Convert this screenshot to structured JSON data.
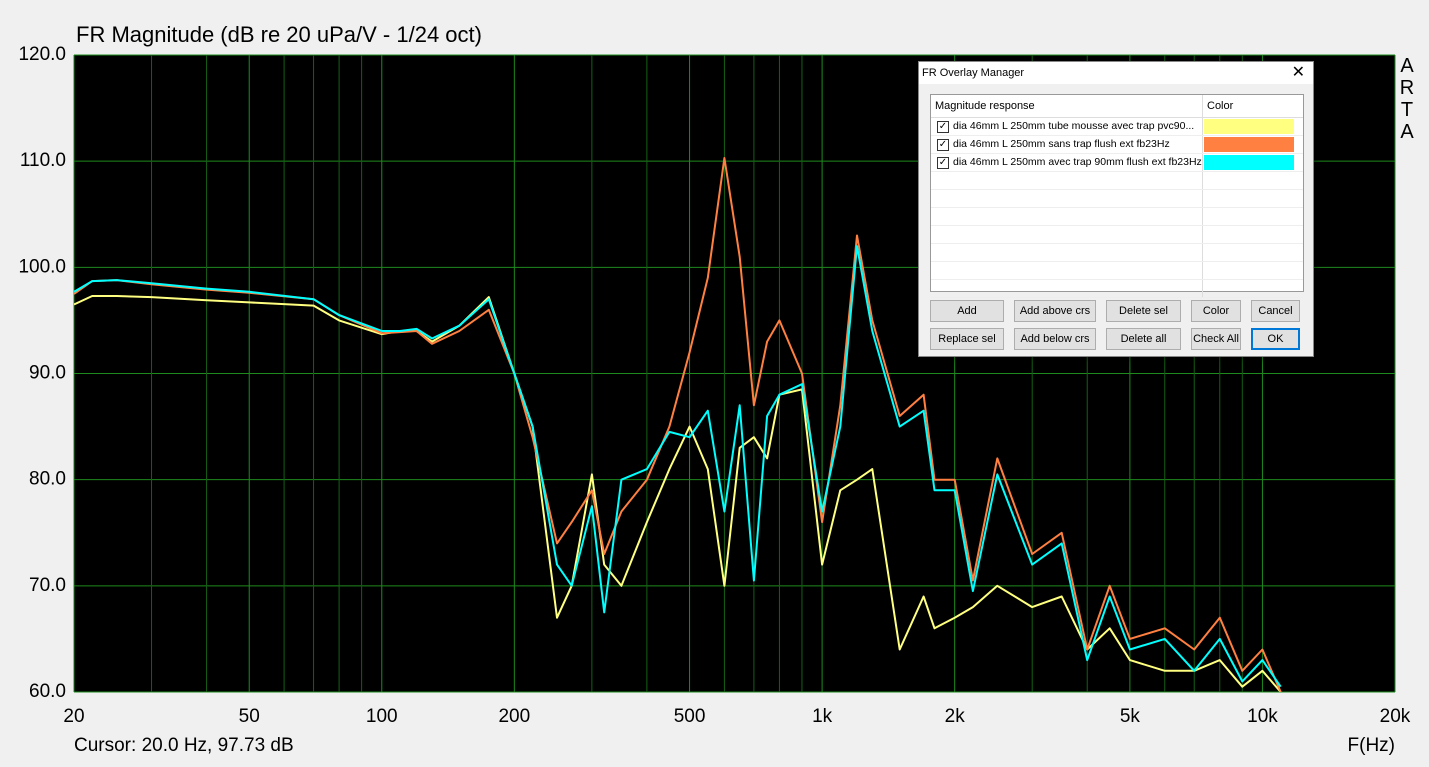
{
  "chart_data": {
    "type": "line",
    "title": "FR Magnitude (dB re 20 uPa/V - 1/24 oct)",
    "x_label": "F(Hz)",
    "side_label": "ARTA",
    "cursor": "Cursor: 20.0 Hz, 97.73 dB",
    "log_x": true,
    "grid": true,
    "xlim": [
      20,
      20000
    ],
    "ylim": [
      60,
      120
    ],
    "xticks": [
      20,
      50,
      100,
      200,
      500,
      {
        "value": 1000,
        "label": "1k"
      },
      {
        "value": 2000,
        "label": "2k"
      },
      {
        "value": 5000,
        "label": "5k"
      },
      {
        "value": 10000,
        "label": "10k"
      },
      {
        "value": 20000,
        "label": "20k"
      }
    ],
    "x_minor_grid": [
      30,
      40,
      60,
      70,
      80,
      90,
      300,
      400,
      600,
      700,
      800,
      900,
      3000,
      4000,
      6000,
      7000,
      8000,
      9000
    ],
    "yticks": [
      {
        "value": 60,
        "label": "60.0"
      },
      {
        "value": 70,
        "label": "70.0"
      },
      {
        "value": 80,
        "label": "80.0"
      },
      {
        "value": 90,
        "label": "90.0"
      },
      {
        "value": 100,
        "label": "100.0"
      },
      {
        "value": 110,
        "label": "110.0"
      },
      {
        "value": 120,
        "label": "120.0"
      }
    ],
    "x": [
      20,
      22,
      25,
      30,
      40,
      50,
      70,
      80,
      100,
      110,
      120,
      130,
      150,
      175,
      200,
      220,
      250,
      270,
      300,
      320,
      350,
      400,
      450,
      500,
      550,
      600,
      650,
      700,
      750,
      800,
      900,
      1000,
      1100,
      1200,
      1300,
      1500,
      1700,
      1800,
      2000,
      2200,
      2500,
      3000,
      3500,
      4000,
      4500,
      5000,
      6000,
      7000,
      8000,
      9000,
      10000,
      11000
    ],
    "series": [
      {
        "name": "dia 46mm L 250mm tube mousse avec trap pvc90...",
        "color": "#ffff80",
        "values": [
          96.5,
          97.3,
          97.3,
          97.2,
          96.9,
          96.7,
          96.4,
          95,
          93.7,
          94,
          94,
          93,
          94.5,
          97.2,
          90,
          85,
          67,
          70,
          80.5,
          72,
          70,
          76,
          81,
          85,
          81,
          70,
          83,
          84,
          82,
          88,
          88.5,
          72,
          79,
          80,
          81,
          64,
          69,
          66,
          67,
          68,
          70,
          68,
          69,
          64,
          66,
          63,
          62,
          62,
          63,
          60.5,
          62,
          60
        ]
      },
      {
        "name": "dia 46mm L 250mm sans trap flush ext fb23Hz",
        "color": "#ff8040",
        "values": [
          97.5,
          98.7,
          98.8,
          98.4,
          97.9,
          97.6,
          97,
          95.5,
          93.8,
          93.9,
          94,
          92.8,
          94,
          96,
          90,
          84,
          74,
          76,
          79,
          73,
          77,
          80,
          85,
          92,
          99,
          110.3,
          101,
          87,
          93,
          95,
          90,
          76,
          87,
          103,
          95,
          86,
          88,
          80,
          80,
          70.5,
          82,
          73,
          75,
          64,
          70,
          65,
          66,
          64,
          67,
          62,
          64,
          60
        ]
      },
      {
        "name": "dia 46mm L 250mm avec trap 90mm flush ext fb23Hz",
        "color": "#00ffff",
        "values": [
          97.7,
          98.7,
          98.8,
          98.5,
          98,
          97.7,
          97,
          95.5,
          94,
          94,
          94.2,
          93.3,
          94.5,
          97,
          90,
          85,
          72,
          70,
          77.5,
          67.5,
          80,
          81,
          84.5,
          84,
          86.5,
          77,
          87,
          70.5,
          86,
          88,
          89,
          77,
          85,
          102,
          94,
          85,
          86.5,
          79,
          79,
          69.5,
          80.5,
          72,
          74,
          63,
          69,
          64,
          65,
          62,
          65,
          61,
          63,
          60.5
        ]
      }
    ]
  },
  "dialog": {
    "title": "FR Overlay Manager",
    "columns": [
      "Magnitude response",
      "Color"
    ],
    "rows": [
      {
        "checked": true
      },
      {
        "checked": true
      },
      {
        "checked": true
      }
    ],
    "buttons": [
      "Add",
      "Add above crs",
      "Delete sel",
      "Color",
      "Cancel",
      "Replace sel",
      "Add below crs",
      "Delete all",
      "Check All",
      "OK"
    ]
  }
}
